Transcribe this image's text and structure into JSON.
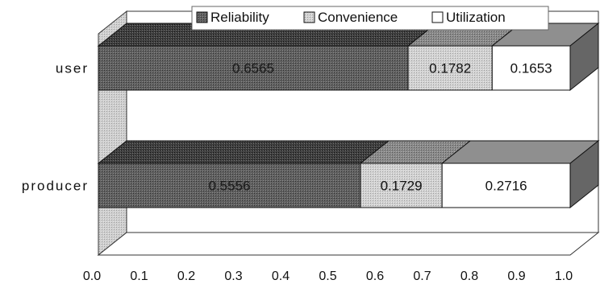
{
  "chart_data": {
    "type": "bar",
    "stacked": true,
    "orientation": "horizontal",
    "three_d": true,
    "categories": [
      "user",
      "producer"
    ],
    "series": [
      {
        "name": "Reliability",
        "values": [
          0.6565,
          0.5556
        ],
        "labels": [
          "0.6565",
          "0.5556"
        ],
        "color": "#5a5a5a",
        "pattern": "dark-dots"
      },
      {
        "name": "Convenience",
        "values": [
          0.1782,
          0.1729
        ],
        "labels": [
          "0.1782",
          "0.1729"
        ],
        "color": "#c8c8c8",
        "pattern": "light-dots"
      },
      {
        "name": "Utilization",
        "values": [
          0.1653,
          0.2716
        ],
        "labels": [
          "0.1653",
          "0.2716"
        ],
        "color": "#ffffff",
        "pattern": "none"
      }
    ],
    "xlim": [
      0,
      1
    ],
    "xticks": [
      "0.0",
      "0.1",
      "0.2",
      "0.3",
      "0.4",
      "0.5",
      "0.6",
      "0.7",
      "0.8",
      "0.9",
      "1.0"
    ],
    "legend_position": "top-center",
    "grid": false,
    "title": "",
    "xlabel": "",
    "ylabel": ""
  }
}
